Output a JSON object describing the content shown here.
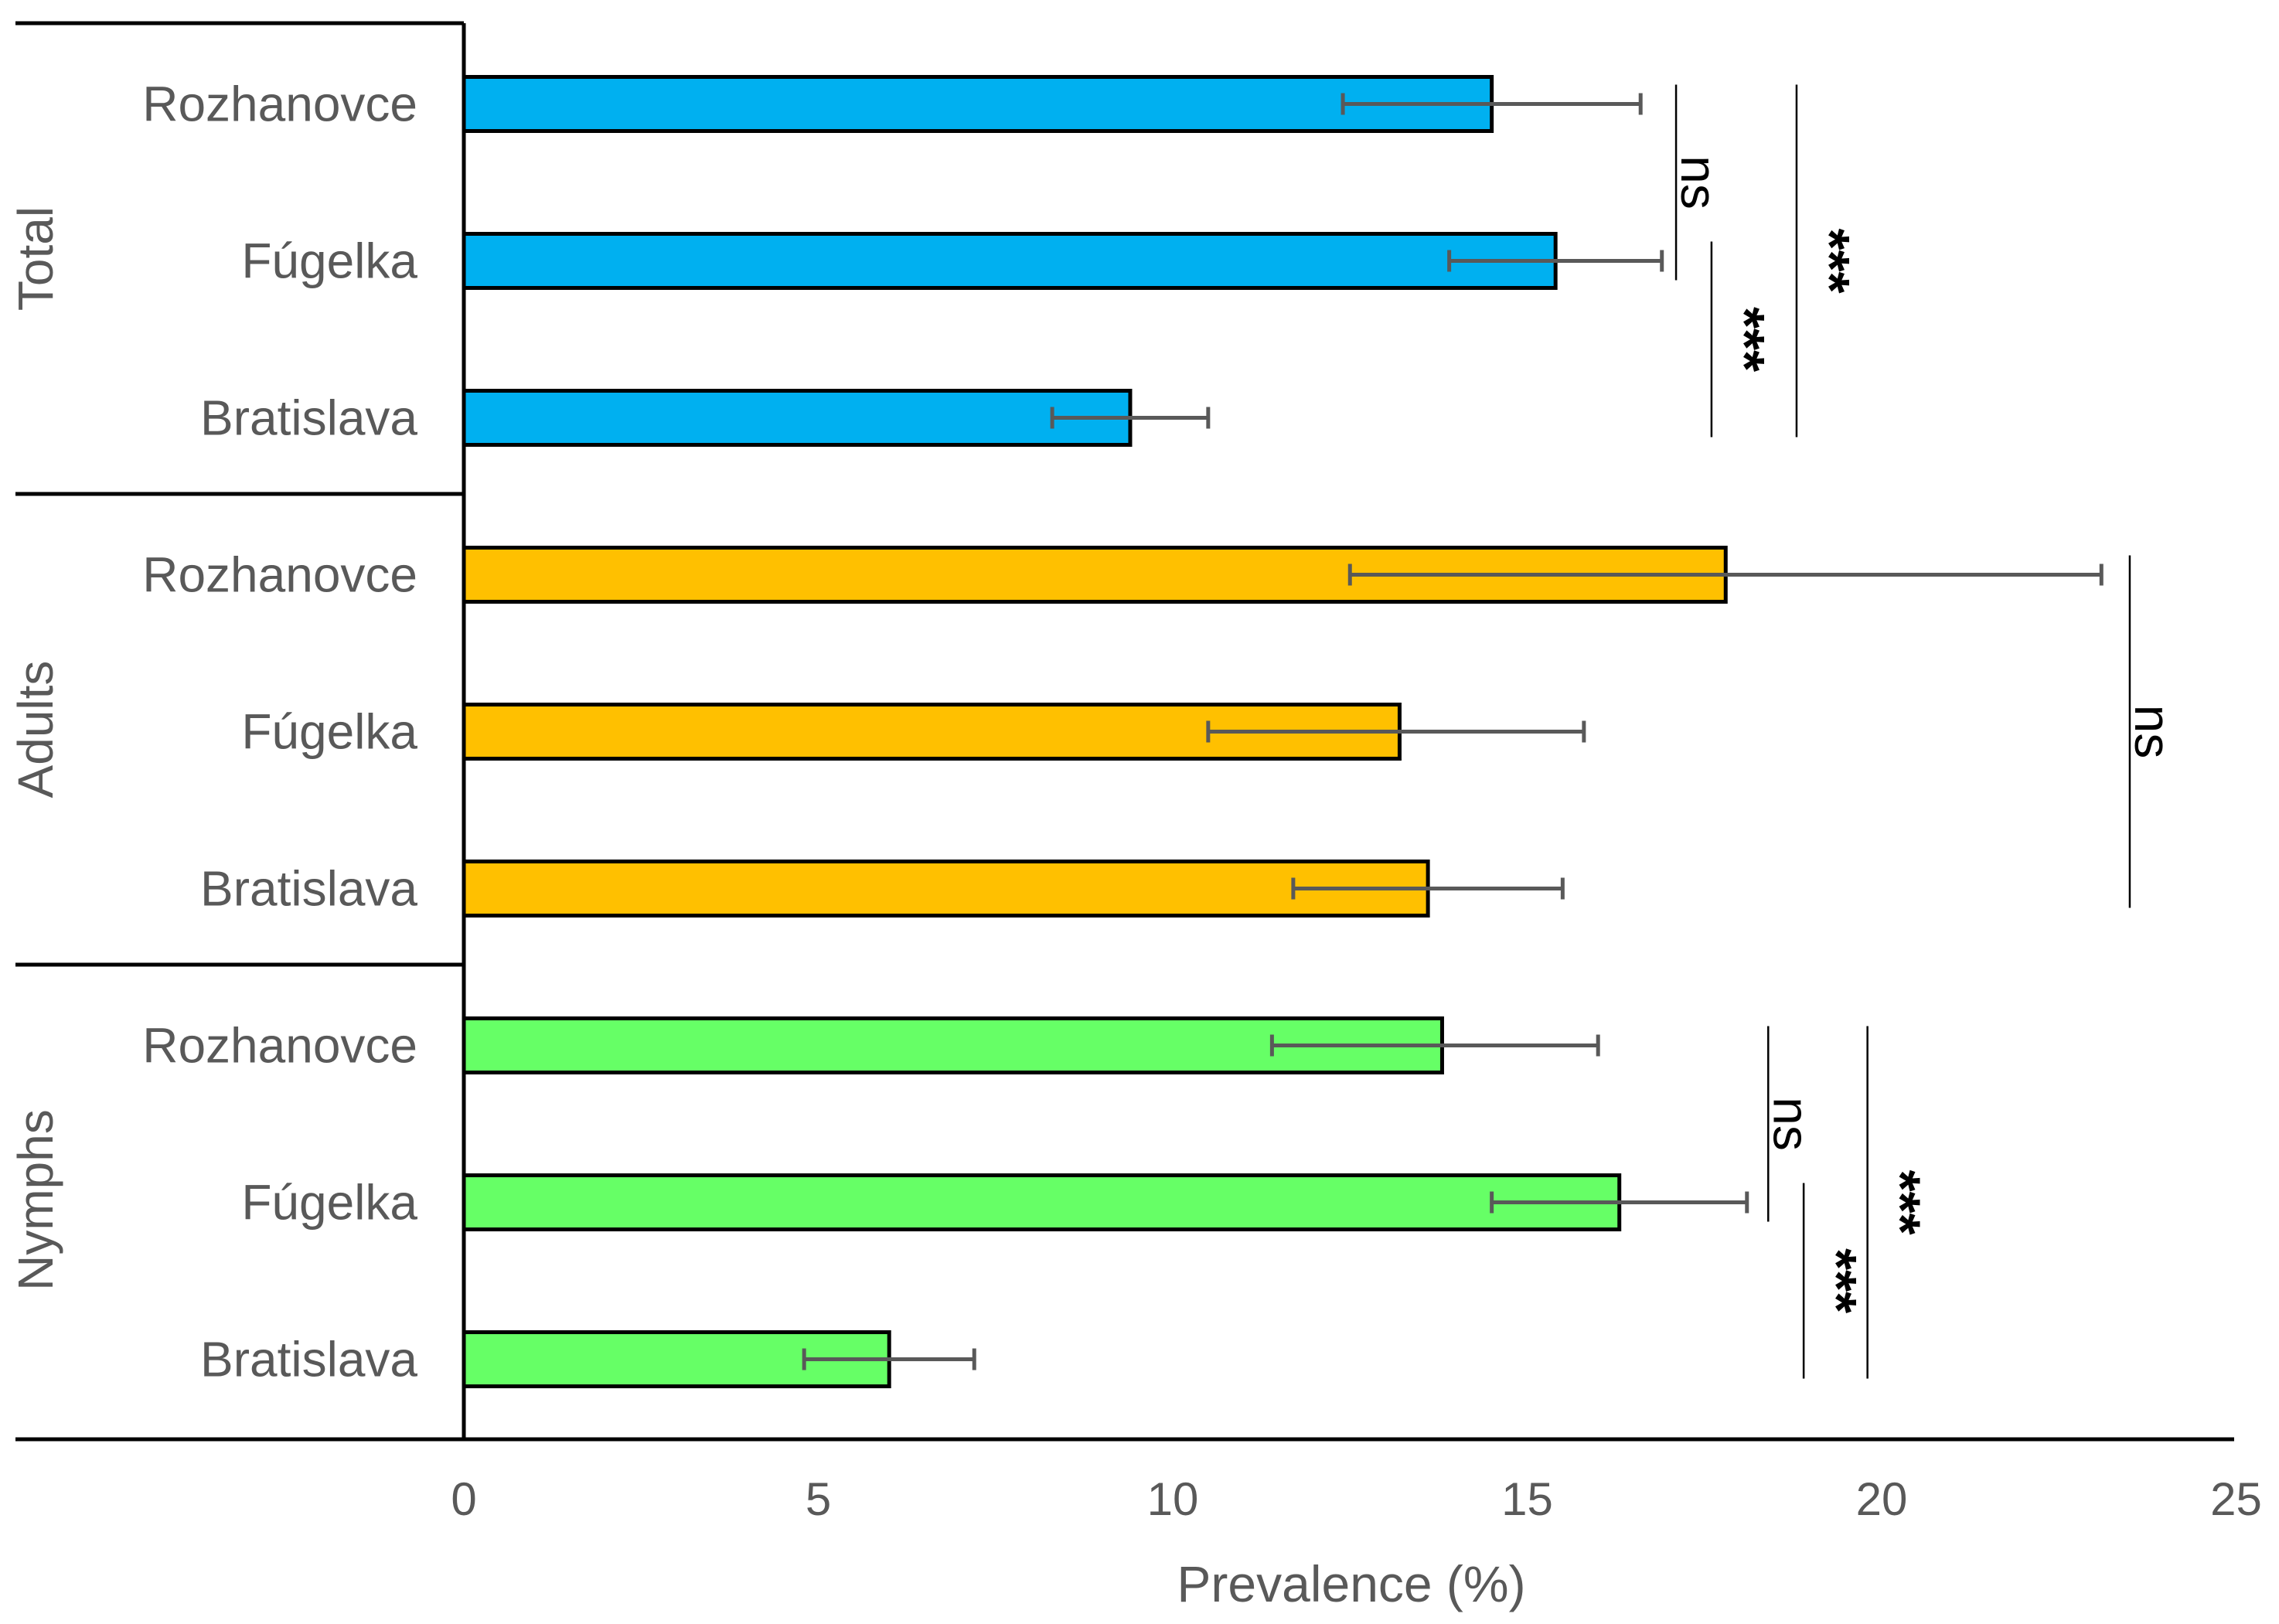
{
  "chart_data": {
    "type": "bar",
    "orientation": "horizontal",
    "xlabel": "Prevalence (%)",
    "xlim": [
      0,
      25
    ],
    "xticks": [
      "0",
      "5",
      "10",
      "15",
      "20",
      "25"
    ],
    "grid": false,
    "groups": [
      {
        "name": "Total",
        "color": "#00B0F0",
        "bars": [
          {
            "category": "Rozhanovce",
            "value": 14.5,
            "err_low": 12.4,
            "err_high": 16.6
          },
          {
            "category": "Fúgelka",
            "value": 15.4,
            "err_low": 13.9,
            "err_high": 16.9
          },
          {
            "category": "Bratislava",
            "value": 9.4,
            "err_low": 8.3,
            "err_high": 10.5
          }
        ],
        "significance": [
          {
            "between": [
              "Rozhanovce",
              "Fúgelka"
            ],
            "label": "ns",
            "x": 17.1
          },
          {
            "between": [
              "Fúgelka",
              "Bratislava"
            ],
            "label": "***",
            "x": 17.6
          },
          {
            "between": [
              "Rozhanovce",
              "Bratislava"
            ],
            "label": "***",
            "x": 18.8
          }
        ]
      },
      {
        "name": "Adults",
        "color": "#FFC000",
        "bars": [
          {
            "category": "Rozhanovce",
            "value": 17.8,
            "err_low": 12.5,
            "err_high": 23.1
          },
          {
            "category": "Fúgelka",
            "value": 13.2,
            "err_low": 10.5,
            "err_high": 15.8
          },
          {
            "category": "Bratislava",
            "value": 13.6,
            "err_low": 11.7,
            "err_high": 15.5
          }
        ],
        "significance": [
          {
            "between": [
              "Rozhanovce",
              "Bratislava"
            ],
            "label": "ns",
            "x": 23.5
          }
        ]
      },
      {
        "name": "Nymphs",
        "color": "#66FF66",
        "bars": [
          {
            "category": "Rozhanovce",
            "value": 13.8,
            "err_low": 11.4,
            "err_high": 16.0
          },
          {
            "category": "Fúgelka",
            "value": 16.3,
            "err_low": 14.5,
            "err_high": 18.1
          },
          {
            "category": "Bratislava",
            "value": 6.0,
            "err_low": 4.8,
            "err_high": 7.2
          }
        ],
        "significance": [
          {
            "between": [
              "Rozhanovce",
              "Fúgelka"
            ],
            "label": "ns",
            "x": 18.4
          },
          {
            "between": [
              "Fúgelka",
              "Bratislava"
            ],
            "label": "***",
            "x": 18.9
          },
          {
            "between": [
              "Rozhanovce",
              "Bratislava"
            ],
            "label": "***",
            "x": 19.8
          }
        ]
      }
    ]
  }
}
